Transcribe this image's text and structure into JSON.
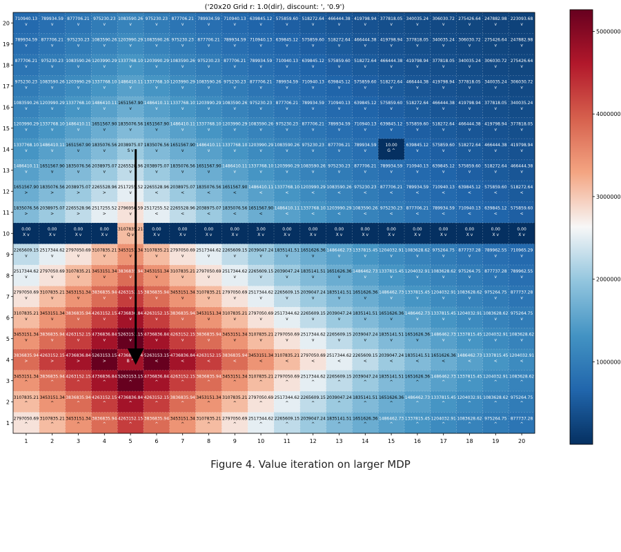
{
  "chart_data": {
    "type": "heatmap",
    "title": "('20x20 Grid r: 1.0(dir), discount: ', '0.9')",
    "x_ticks": [
      "1",
      "2",
      "3",
      "4",
      "5",
      "6",
      "7",
      "8",
      "9",
      "10",
      "11",
      "12",
      "13",
      "14",
      "15",
      "16",
      "17",
      "18",
      "19",
      "20"
    ],
    "y_ticks": [
      "20",
      "19",
      "18",
      "17",
      "16",
      "15",
      "14",
      "13",
      "12",
      "11",
      "10",
      "9",
      "8",
      "7",
      "6",
      "5",
      "4",
      "3",
      "2",
      "1"
    ],
    "colorbar_ticks": [
      1000000,
      2000000,
      3000000,
      4000000,
      5000000
    ],
    "colorbar_tick_labels": [
      "1000000",
      "2000000",
      "3000000",
      "4000000",
      "5000000"
    ],
    "vmin": 0,
    "vmax": 5263153.15,
    "colormap": "RdBu_r",
    "rows": [
      {
        "y": "20",
        "values": [
          710940.13,
          789934.59,
          877706.21,
          975230.23,
          1083590.26,
          975230.23,
          877706.21,
          789934.59,
          710940.13,
          639845.12,
          575859.6,
          518272.64,
          466444.38,
          419798.94,
          377818.05,
          340035.24,
          306030.72,
          275426.64,
          247882.98,
          223093.68
        ],
        "actions": [
          "v",
          "v",
          "v",
          "v",
          "v",
          "v",
          "v",
          "v",
          "v",
          "v",
          "v",
          "v",
          "v",
          "v",
          "v",
          "v",
          "v",
          "v",
          "v",
          "v"
        ]
      },
      {
        "y": "19",
        "values": [
          789934.59,
          877706.21,
          975230.23,
          1083590.26,
          1203990.29,
          1083590.26,
          975230.23,
          877706.21,
          789934.59,
          710940.13,
          639845.12,
          575859.6,
          518272.64,
          466444.38,
          419798.94,
          377818.05,
          340035.24,
          306030.72,
          275426.64,
          247882.98
        ],
        "actions": [
          "v",
          "v",
          "v",
          "v",
          "v",
          "v",
          "v",
          "v",
          "v",
          "v",
          "v",
          "v",
          "v",
          "v",
          "v",
          "v",
          "v",
          "v",
          "v",
          "v"
        ]
      },
      {
        "y": "18",
        "values": [
          877706.21,
          975230.23,
          1083590.26,
          1203990.29,
          1337768.1,
          1203990.29,
          1083590.26,
          975230.23,
          877706.21,
          789934.59,
          710940.13,
          639845.12,
          575859.6,
          518272.64,
          466444.38,
          419798.94,
          377818.05,
          340035.24,
          306030.72,
          275426.64
        ],
        "actions": [
          "v",
          "v",
          "v",
          "v",
          "v",
          "v",
          "v",
          "v",
          "v",
          "v",
          "v",
          "v",
          "v",
          "v",
          "v",
          "v",
          "v",
          "v",
          "v",
          "v"
        ]
      },
      {
        "y": "17",
        "values": [
          975230.23,
          1083590.26,
          1203990.29,
          1337768.1,
          1486410.11,
          1337768.1,
          1203990.29,
          1083590.26,
          975230.23,
          877706.21,
          789934.59,
          710940.13,
          639845.12,
          575859.6,
          518272.64,
          466444.38,
          419798.94,
          377818.05,
          340035.24,
          306030.72
        ],
        "actions": [
          "v",
          "v",
          "v",
          "v",
          "v",
          "v",
          "v",
          "v",
          "v",
          "v",
          "v",
          "v",
          "v",
          "v",
          "v",
          "v",
          "v",
          "v",
          "v",
          "v"
        ]
      },
      {
        "y": "16",
        "values": [
          1083590.26,
          1203990.29,
          1337768.1,
          1486410.11,
          1651567.9,
          1486410.11,
          1337768.1,
          1203990.29,
          1083590.26,
          975230.23,
          877706.21,
          789934.59,
          710940.13,
          639845.12,
          575859.6,
          518272.64,
          466444.38,
          419798.94,
          377818.05,
          340035.24
        ],
        "actions": [
          "v",
          "v",
          "v",
          "v",
          "v",
          "v",
          "v",
          "v",
          "v",
          "v",
          "v",
          "v",
          "v",
          "v",
          "v",
          "v",
          "v",
          "v",
          "v",
          "v"
        ]
      },
      {
        "y": "15",
        "values": [
          1203990.29,
          1337768.1,
          1486410.11,
          1651567.9,
          1835076.56,
          1651567.9,
          1486410.11,
          1337768.1,
          1203990.29,
          1083590.26,
          975230.23,
          877706.21,
          789934.59,
          710940.13,
          639845.12,
          575859.6,
          518272.64,
          466444.38,
          419798.94,
          377818.05
        ],
        "actions": [
          "v",
          "v",
          "v",
          "v",
          "v",
          "v",
          "v",
          "v",
          "v",
          "v",
          "v",
          "v",
          "v",
          "v",
          "v",
          "v",
          "v",
          "v",
          "v",
          "v"
        ]
      },
      {
        "y": "14",
        "values": [
          1337768.1,
          1486410.11,
          1651567.9,
          1835076.56,
          2038975.07,
          1835076.56,
          1651567.9,
          1486410.11,
          1337768.1,
          1203990.29,
          1083590.26,
          975230.23,
          877706.21,
          789934.59,
          10.0,
          639845.12,
          575859.6,
          518272.64,
          466444.38,
          419798.94
        ],
        "actions": [
          "v",
          "v",
          "v",
          "v",
          "S v",
          "v",
          "v",
          "v",
          "v",
          "v",
          "v",
          "v",
          "v",
          "v",
          "G ^",
          "v",
          "v",
          "v",
          "v",
          "v"
        ]
      },
      {
        "y": "13",
        "values": [
          1486410.11,
          1651567.9,
          1835076.56,
          2038975.07,
          2265528.96,
          2038975.07,
          1835076.56,
          1651567.9,
          1486410.11,
          1337768.1,
          1203990.29,
          1083590.26,
          975230.23,
          877706.21,
          789934.59,
          710940.13,
          639845.12,
          575859.6,
          518272.64,
          466444.38
        ],
        "actions": [
          "v",
          "v",
          "v",
          "v",
          "v",
          "v",
          "v",
          "v",
          "v",
          "v",
          "v",
          "v",
          "v",
          "v",
          "v",
          "v",
          "v",
          "v",
          "v",
          "v"
        ]
      },
      {
        "y": "12",
        "values": [
          1651567.9,
          1835076.56,
          2038975.07,
          2265528.96,
          2517255.52,
          2265528.96,
          2038975.07,
          1835076.56,
          1651567.9,
          1486410.11,
          1337768.1,
          1203990.29,
          1083590.26,
          975230.23,
          877706.21,
          789934.59,
          710940.13,
          639845.12,
          575859.6,
          518272.64
        ],
        "actions": [
          ">",
          ">",
          ">",
          ">",
          "v",
          "<",
          "<",
          "<",
          "<",
          "<",
          "<",
          "<",
          "<",
          "<",
          "<",
          "<",
          "<",
          "<",
          "<",
          "<"
        ]
      },
      {
        "y": "11",
        "values": [
          1835076.56,
          2038975.07,
          2265528.96,
          2517255.52,
          2796950.59,
          2517255.52,
          2265528.96,
          2038975.07,
          1835076.56,
          1651567.9,
          1486410.11,
          1337768.1,
          1203990.29,
          1083590.26,
          975230.23,
          877706.21,
          789934.59,
          710940.13,
          639845.12,
          575859.6
        ],
        "actions": [
          ">",
          ">",
          ">",
          ">",
          "v",
          "<",
          "<",
          "<",
          "<",
          "<",
          "<",
          "<",
          "<",
          "<",
          "<",
          "<",
          "<",
          "<",
          "<",
          "<"
        ]
      },
      {
        "y": "10",
        "values": [
          0.0,
          0.0,
          0.0,
          0.0,
          3107835.21,
          0.0,
          0.0,
          0.0,
          0.0,
          3.0,
          0.0,
          0.0,
          0.0,
          0.0,
          0.0,
          0.0,
          0.0,
          0.0,
          0.0,
          0.0
        ],
        "actions": [
          "X v",
          "X v",
          "X v",
          "X v",
          "Q v",
          "X v",
          "X v",
          "X v",
          "X v",
          "X v",
          "X v",
          "X v",
          "X v",
          "X v",
          "X v",
          "X v",
          "X v",
          "X v",
          "X v",
          "X v"
        ]
      },
      {
        "y": "9",
        "values": [
          2265609.15,
          2517344.62,
          2797050.69,
          3107835.21,
          3453151.34,
          3107835.21,
          2797050.69,
          2517344.62,
          2265609.15,
          2039047.24,
          1835141.51,
          1651626.36,
          1486462.73,
          1337815.45,
          1204032.91,
          1083628.62,
          975264.75,
          877737.28,
          789962.55,
          710965.29
        ],
        "actions": [
          "v",
          "v",
          "v",
          "v",
          "v",
          "v",
          "v",
          "v",
          "v",
          "v",
          "v",
          "v",
          "v",
          "v",
          "v",
          "v",
          "v",
          "v",
          "v",
          "v"
        ]
      },
      {
        "y": "8",
        "values": [
          2517344.62,
          2797050.69,
          3107835.21,
          3453151.34,
          3836835.94,
          3453151.34,
          3107835.21,
          2797050.69,
          2517344.62,
          2265609.15,
          2039047.24,
          1835141.51,
          1651626.36,
          1486462.73,
          1337815.45,
          1204032.91,
          1083628.62,
          975264.75,
          877737.28,
          789962.55
        ],
        "actions": [
          "v",
          "v",
          "v",
          "v",
          "v",
          "v",
          "v",
          "v",
          "v",
          "v",
          "v",
          "v",
          "v",
          "v",
          "v",
          "v",
          "v",
          "v",
          "v",
          "v"
        ]
      },
      {
        "y": "7",
        "values": [
          2797050.69,
          3107835.21,
          3453151.34,
          3836835.94,
          4263152.15,
          3836835.94,
          3453151.34,
          3107835.21,
          2797050.69,
          2517344.62,
          2265609.15,
          2039047.24,
          1835141.51,
          1651626.36,
          1486462.73,
          1337815.45,
          1204032.91,
          1083628.62,
          975264.75,
          877737.28
        ],
        "actions": [
          "v",
          "v",
          "v",
          "v",
          "v",
          "v",
          "v",
          "v",
          "v",
          "v",
          "v",
          "v",
          "v",
          "v",
          "v",
          "v",
          "v",
          "v",
          "v",
          "v"
        ]
      },
      {
        "y": "6",
        "values": [
          3107835.21,
          3453151.34,
          3836835.94,
          4263152.15,
          4736836.84,
          4263152.15,
          3836835.94,
          3453151.34,
          3107835.21,
          2797050.69,
          2517344.62,
          2265609.15,
          2039047.24,
          1835141.51,
          1651626.36,
          1486462.73,
          1337815.45,
          1204032.91,
          1083628.62,
          975264.75
        ],
        "actions": [
          "v",
          "v",
          "v",
          "v",
          "v",
          "v",
          "v",
          "v",
          "v",
          "v",
          "v",
          "v",
          "v",
          "v",
          "v",
          "v",
          "v",
          "v",
          "v",
          "v"
        ]
      },
      {
        "y": "5",
        "values": [
          3453151.34,
          3836835.94,
          4263152.15,
          4736836.84,
          5263153.15,
          4736836.84,
          4263152.15,
          3836835.94,
          3453151.34,
          3107835.21,
          2797050.69,
          2517344.62,
          2265609.15,
          2039047.24,
          1835141.51,
          1651626.36,
          1486462.73,
          1337815.45,
          1204032.91,
          1083628.62
        ],
        "actions": [
          "v",
          "v",
          "v",
          "v",
          "v",
          "v",
          "v",
          "v",
          "v",
          "v",
          "v",
          "v",
          "v",
          "v",
          "v",
          "v",
          "v",
          "v",
          "v",
          "v"
        ]
      },
      {
        "y": "4",
        "values": [
          3836835.94,
          4263152.15,
          4736836.84,
          5263153.15,
          4736836.84,
          5263153.15,
          4736836.84,
          4263152.15,
          3836835.94,
          3453151.34,
          3107835.21,
          2797050.69,
          2517344.62,
          2265609.15,
          2039047.24,
          1835141.51,
          1651626.36,
          1486462.73,
          1337815.45,
          1204032.91
        ],
        "actions": [
          ">",
          ">",
          ">",
          ">",
          "B ^",
          "<",
          "<",
          "<",
          "<",
          "<",
          "<",
          "<",
          "<",
          "<",
          "<",
          "<",
          "<",
          "<",
          "<",
          "<"
        ]
      },
      {
        "y": "3",
        "values": [
          3453151.34,
          3836835.94,
          4263152.15,
          4736836.84,
          5263153.15,
          4736836.84,
          4263152.15,
          3836835.94,
          3453151.34,
          3107835.21,
          2797050.69,
          2517344.62,
          2265609.15,
          2039047.24,
          1835141.51,
          1651626.36,
          1486462.73,
          1337815.45,
          1204032.91,
          1083628.62
        ],
        "actions": [
          "^",
          "^",
          "^",
          "^",
          "^",
          "^",
          "^",
          "^",
          "^",
          "^",
          "^",
          "^",
          "^",
          "^",
          "^",
          "^",
          "^",
          "^",
          "^",
          "^"
        ]
      },
      {
        "y": "2",
        "values": [
          3107835.21,
          3453151.34,
          3836835.94,
          4263152.15,
          4736836.84,
          4263152.15,
          3836835.94,
          3453151.34,
          3107835.21,
          2797050.69,
          2517344.62,
          2265609.15,
          2039047.24,
          1835141.51,
          1651626.36,
          1486462.73,
          1337815.45,
          1204032.91,
          1083628.62,
          975264.75
        ],
        "actions": [
          "^",
          "^",
          "^",
          "^",
          "^",
          "^",
          "^",
          "^",
          "^",
          "^",
          "^",
          "^",
          "^",
          "^",
          "^",
          "^",
          "^",
          "^",
          "^",
          "^"
        ]
      },
      {
        "y": "1",
        "values": [
          2797050.69,
          3107835.21,
          3453151.34,
          3836835.94,
          4263152.15,
          3836835.94,
          3453151.34,
          3107835.21,
          2797050.69,
          2517344.62,
          2265609.15,
          2039047.24,
          1835141.51,
          1651626.36,
          1486462.73,
          1337815.45,
          1204032.91,
          1083628.62,
          975264.75,
          877737.28
        ],
        "actions": [
          "^",
          "^",
          "^",
          "^",
          "^",
          "^",
          "^",
          "^",
          "^",
          "^",
          "^",
          "^",
          "^",
          "^",
          "^",
          "^",
          "^",
          "^",
          "^",
          "^"
        ]
      }
    ],
    "arrow_annotation": {
      "from_x": "5",
      "from_y": "14",
      "to_x": "5",
      "to_y": "4"
    }
  },
  "caption": "Figure 4. Value iteration on larger MDP"
}
